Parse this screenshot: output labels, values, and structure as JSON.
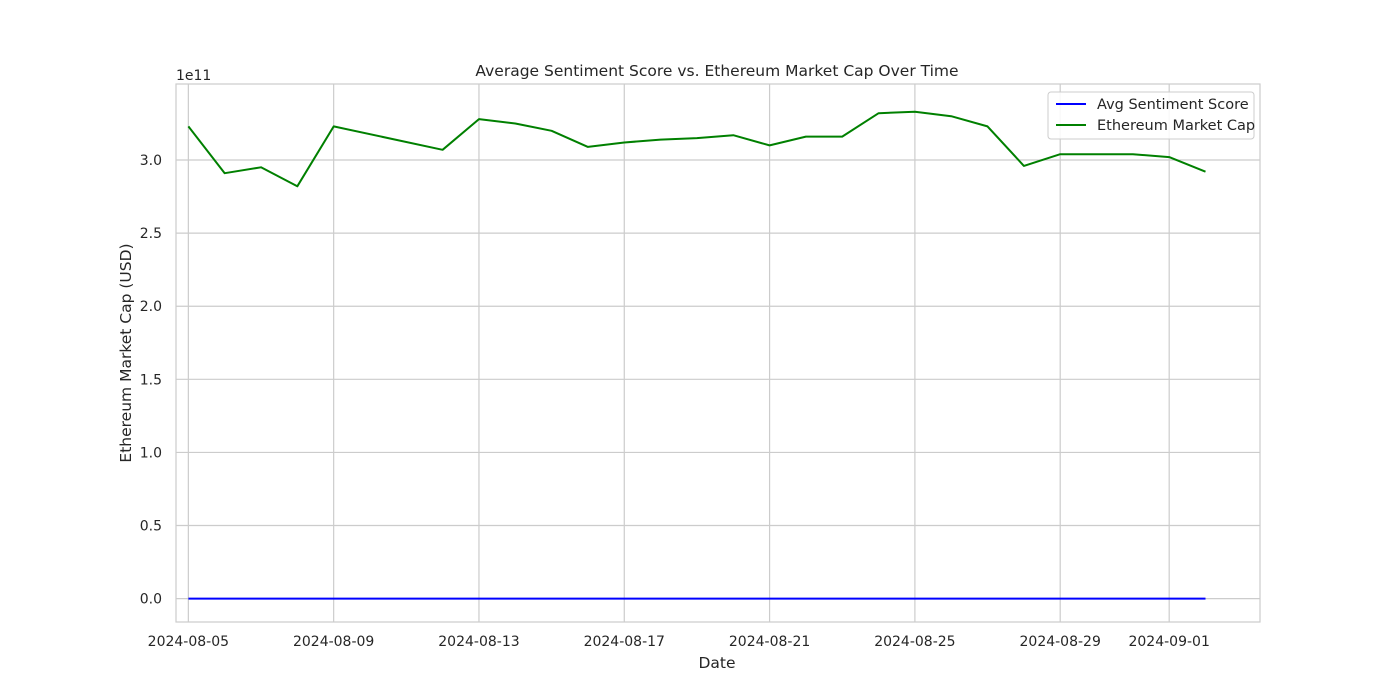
{
  "chart_data": {
    "type": "line",
    "title": "Average Sentiment Score vs. Ethereum Market Cap Over Time",
    "xlabel": "Date",
    "ylabel": "Ethereum Market Cap (USD)",
    "y_offset_label": "1e11",
    "xlim": [
      "2024-08-04",
      "2024-09-04"
    ],
    "ylim": [
      -1.6,
      35.2
    ],
    "y_unit_note": "values in units of 1e10 USD for y; tick labels in units of 1e11",
    "x_ticks": [
      "2024-08-05",
      "2024-08-09",
      "2024-08-13",
      "2024-08-17",
      "2024-08-21",
      "2024-08-25",
      "2024-08-29",
      "2024-09-01"
    ],
    "y_ticks": [
      {
        "value": 0,
        "label": "0.0"
      },
      {
        "value": 5,
        "label": "0.5"
      },
      {
        "value": 10,
        "label": "1.0"
      },
      {
        "value": 15,
        "label": "1.5"
      },
      {
        "value": 20,
        "label": "2.0"
      },
      {
        "value": 25,
        "label": "2.5"
      },
      {
        "value": 30,
        "label": "3.0"
      }
    ],
    "grid": true,
    "legend_position": "top-right",
    "series": [
      {
        "name": "Avg Sentiment Score",
        "color": "#0000ff",
        "points": [
          [
            "2024-08-05",
            0.0
          ],
          [
            "2024-08-09",
            0.0
          ],
          [
            "2024-08-12",
            0.0
          ],
          [
            "2024-08-13",
            0.0
          ],
          [
            "2024-08-17",
            0.0
          ],
          [
            "2024-08-21",
            0.0
          ],
          [
            "2024-08-25",
            0.0
          ],
          [
            "2024-08-29",
            0.0
          ],
          [
            "2024-09-01",
            0.0
          ],
          [
            "2024-09-02",
            0.0
          ]
        ]
      },
      {
        "name": "Ethereum Market Cap",
        "color": "#008000",
        "points": [
          [
            "2024-08-05",
            32.3
          ],
          [
            "2024-08-06",
            29.1
          ],
          [
            "2024-08-07",
            29.5
          ],
          [
            "2024-08-08",
            28.2
          ],
          [
            "2024-08-09",
            32.3
          ],
          [
            "2024-08-12",
            30.7
          ],
          [
            "2024-08-13",
            32.8
          ],
          [
            "2024-08-14",
            32.5
          ],
          [
            "2024-08-15",
            32.0
          ],
          [
            "2024-08-16",
            30.9
          ],
          [
            "2024-08-17",
            31.2
          ],
          [
            "2024-08-18",
            31.4
          ],
          [
            "2024-08-19",
            31.5
          ],
          [
            "2024-08-20",
            31.7
          ],
          [
            "2024-08-21",
            31.0
          ],
          [
            "2024-08-22",
            31.6
          ],
          [
            "2024-08-23",
            31.6
          ],
          [
            "2024-08-24",
            33.2
          ],
          [
            "2024-08-25",
            33.3
          ],
          [
            "2024-08-26",
            33.0
          ],
          [
            "2024-08-27",
            32.3
          ],
          [
            "2024-08-28",
            29.6
          ],
          [
            "2024-08-29",
            30.4
          ],
          [
            "2024-08-30",
            30.4
          ],
          [
            "2024-08-31",
            30.4
          ],
          [
            "2024-09-01",
            30.2
          ],
          [
            "2024-09-02",
            29.2
          ]
        ]
      }
    ]
  }
}
